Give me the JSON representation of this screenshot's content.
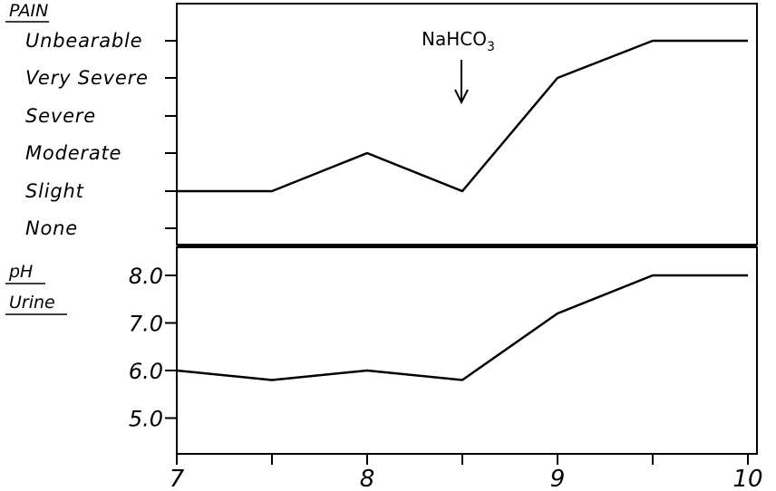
{
  "chart_data": [
    {
      "type": "line",
      "ylabel": "PAIN",
      "categories": [
        "None",
        "Slight",
        "Moderate",
        "Severe",
        "Very Severe",
        "Unbearable"
      ],
      "x": [
        7,
        7.5,
        8,
        8.5,
        9,
        9.5,
        10
      ],
      "series": [
        {
          "values": [
            "Slight",
            "Slight",
            "Moderate",
            "Slight",
            "Very Severe",
            "Unbearable",
            "Unbearable"
          ]
        }
      ],
      "annotation": {
        "text": "NaHCO",
        "subscript": "3",
        "x": 8.5,
        "arrow": "down"
      }
    },
    {
      "type": "line",
      "ylabel_line1": "pH",
      "ylabel_line2": "Urine",
      "yticks": [
        "5.0",
        "6.0",
        "7.0",
        "8.0"
      ],
      "ylim": [
        4.3,
        8.6
      ],
      "x": [
        7,
        7.5,
        8,
        8.5,
        9,
        9.5,
        10
      ],
      "series": [
        {
          "values": [
            6.0,
            5.8,
            6.0,
            5.8,
            7.2,
            8.0,
            8.0
          ]
        }
      ]
    }
  ],
  "xaxis": {
    "xlim": [
      7,
      10
    ],
    "ticks": [
      7,
      7.5,
      8,
      8.5,
      9,
      9.5,
      10
    ],
    "tick_labels": [
      "7",
      "8",
      "9",
      "10"
    ]
  }
}
